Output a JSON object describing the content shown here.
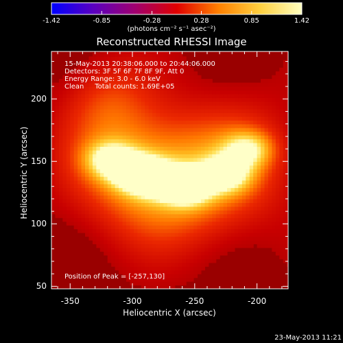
{
  "chart_data": {
    "type": "heatmap",
    "title": "Reconstructed RHESSI Image",
    "xlabel": "Heliocentric X (arcsec)",
    "ylabel": "Heliocentric Y (arcsec)",
    "xlim": [
      -365,
      -175
    ],
    "ylim": [
      48,
      238
    ],
    "x_ticks": [
      "-350",
      "-300",
      "-250",
      "-200"
    ],
    "x_tick_values": [
      -350,
      -300,
      -250,
      -200
    ],
    "y_ticks": [
      "50",
      "100",
      "150",
      "200"
    ],
    "y_tick_values": [
      50,
      100,
      150,
      200
    ],
    "colorbar": {
      "ticks": [
        "-1.42",
        "-0.85",
        "-0.28",
        "0.28",
        "0.85",
        "1.42"
      ],
      "tick_values": [
        -1.42,
        -0.85,
        -0.28,
        0.28,
        0.85,
        1.42
      ],
      "range": [
        -1.42,
        1.42
      ],
      "units": "(photons cm⁻² s⁻¹ asec⁻²)",
      "colormap": [
        "#0000ff",
        "#5a00c0",
        "#a00070",
        "#e00000",
        "#ff8000",
        "#ffd040",
        "#ffffc0"
      ]
    },
    "annotations": [
      "15-May-2013 20:38:06.000 to 20:44:06.000",
      "Detectors: 3F 5F 6F 7F 8F 9F, Att 0",
      "Energy Range: 3.0 - 6.0 keV",
      "Clean     Total counts: 1.69E+05",
      "Position of Peak = [-257,130]"
    ],
    "peak": {
      "x": -257,
      "y": 130
    },
    "sources": [
      {
        "x": -257,
        "y": 130,
        "intensity": 1.42
      },
      {
        "x": -285,
        "y": 137,
        "intensity": 1.2
      },
      {
        "x": -225,
        "y": 140,
        "intensity": 1.1
      },
      {
        "x": -318,
        "y": 152,
        "intensity": 1.0
      },
      {
        "x": -207,
        "y": 160,
        "intensity": 0.95
      },
      {
        "x": -300,
        "y": 142,
        "intensity": 0.9
      }
    ],
    "background_level": 0.3
  },
  "footer": "23-May-2013 11:21"
}
